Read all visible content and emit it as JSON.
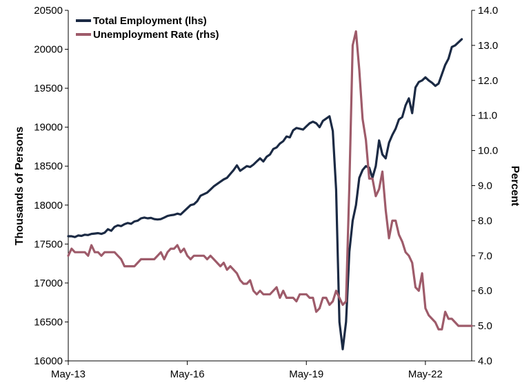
{
  "chart_data": {
    "type": "line",
    "x_tick_labels": [
      "May-13",
      "May-16",
      "May-19",
      "May-22"
    ],
    "y_left": {
      "label": "Thousands of Persons",
      "min": 16000,
      "max": 20500,
      "ticks": [
        "16000",
        "16500",
        "17000",
        "17500",
        "18000",
        "18500",
        "19000",
        "19500",
        "20000",
        "20500"
      ]
    },
    "y_right": {
      "label": "Percent",
      "min": 4.0,
      "max": 14.0,
      "ticks": [
        "4.0",
        "5.0",
        "6.0",
        "7.0",
        "8.0",
        "9.0",
        "10.0",
        "11.0",
        "12.0",
        "13.0",
        "14.0"
      ]
    },
    "legend_position": "top-left",
    "grid": false,
    "series": [
      {
        "name": "Total Employment (lhs)",
        "axis": "left",
        "color": "#1b2a44",
        "points": [
          [
            "2013-05",
            17600
          ],
          [
            "2013-06",
            17600
          ],
          [
            "2013-07",
            17590
          ],
          [
            "2013-08",
            17610
          ],
          [
            "2013-09",
            17605
          ],
          [
            "2013-10",
            17620
          ],
          [
            "2013-11",
            17615
          ],
          [
            "2013-12",
            17630
          ],
          [
            "2014-01",
            17635
          ],
          [
            "2014-02",
            17640
          ],
          [
            "2014-03",
            17630
          ],
          [
            "2014-04",
            17645
          ],
          [
            "2014-05",
            17690
          ],
          [
            "2014-06",
            17670
          ],
          [
            "2014-07",
            17720
          ],
          [
            "2014-08",
            17740
          ],
          [
            "2014-09",
            17730
          ],
          [
            "2014-10",
            17755
          ],
          [
            "2014-11",
            17770
          ],
          [
            "2014-12",
            17760
          ],
          [
            "2015-01",
            17790
          ],
          [
            "2015-02",
            17800
          ],
          [
            "2015-03",
            17830
          ],
          [
            "2015-04",
            17840
          ],
          [
            "2015-05",
            17830
          ],
          [
            "2015-06",
            17835
          ],
          [
            "2015-07",
            17820
          ],
          [
            "2015-08",
            17815
          ],
          [
            "2015-09",
            17820
          ],
          [
            "2015-10",
            17840
          ],
          [
            "2015-11",
            17860
          ],
          [
            "2015-12",
            17870
          ],
          [
            "2016-01",
            17875
          ],
          [
            "2016-02",
            17890
          ],
          [
            "2016-03",
            17880
          ],
          [
            "2016-04",
            17920
          ],
          [
            "2016-05",
            17960
          ],
          [
            "2016-06",
            18000
          ],
          [
            "2016-07",
            18010
          ],
          [
            "2016-08",
            18050
          ],
          [
            "2016-09",
            18120
          ],
          [
            "2016-10",
            18140
          ],
          [
            "2016-11",
            18160
          ],
          [
            "2016-12",
            18200
          ],
          [
            "2017-01",
            18240
          ],
          [
            "2017-02",
            18270
          ],
          [
            "2017-03",
            18300
          ],
          [
            "2017-04",
            18330
          ],
          [
            "2017-05",
            18350
          ],
          [
            "2017-06",
            18400
          ],
          [
            "2017-07",
            18450
          ],
          [
            "2017-08",
            18510
          ],
          [
            "2017-09",
            18440
          ],
          [
            "2017-10",
            18470
          ],
          [
            "2017-11",
            18500
          ],
          [
            "2017-12",
            18490
          ],
          [
            "2018-01",
            18520
          ],
          [
            "2018-02",
            18560
          ],
          [
            "2018-03",
            18600
          ],
          [
            "2018-04",
            18560
          ],
          [
            "2018-05",
            18620
          ],
          [
            "2018-06",
            18650
          ],
          [
            "2018-07",
            18720
          ],
          [
            "2018-08",
            18740
          ],
          [
            "2018-09",
            18790
          ],
          [
            "2018-10",
            18820
          ],
          [
            "2018-11",
            18880
          ],
          [
            "2018-12",
            18870
          ],
          [
            "2019-01",
            18960
          ],
          [
            "2019-02",
            18990
          ],
          [
            "2019-03",
            18980
          ],
          [
            "2019-04",
            18970
          ],
          [
            "2019-05",
            19010
          ],
          [
            "2019-06",
            19050
          ],
          [
            "2019-07",
            19070
          ],
          [
            "2019-08",
            19050
          ],
          [
            "2019-09",
            19000
          ],
          [
            "2019-10",
            19080
          ],
          [
            "2019-11",
            19110
          ],
          [
            "2019-12",
            19140
          ],
          [
            "2020-01",
            18950
          ],
          [
            "2020-02",
            18200
          ],
          [
            "2020-03",
            16500
          ],
          [
            "2020-04",
            16150
          ],
          [
            "2020-05",
            16500
          ],
          [
            "2020-06",
            17400
          ],
          [
            "2020-07",
            17800
          ],
          [
            "2020-08",
            18000
          ],
          [
            "2020-09",
            18350
          ],
          [
            "2020-10",
            18450
          ],
          [
            "2020-11",
            18500
          ],
          [
            "2020-12",
            18480
          ],
          [
            "2021-01",
            18350
          ],
          [
            "2021-02",
            18500
          ],
          [
            "2021-03",
            18830
          ],
          [
            "2021-04",
            18650
          ],
          [
            "2021-05",
            18600
          ],
          [
            "2021-06",
            18800
          ],
          [
            "2021-07",
            18900
          ],
          [
            "2021-08",
            18980
          ],
          [
            "2021-09",
            19100
          ],
          [
            "2021-10",
            19130
          ],
          [
            "2021-11",
            19280
          ],
          [
            "2021-12",
            19370
          ],
          [
            "2022-01",
            19180
          ],
          [
            "2022-02",
            19510
          ],
          [
            "2022-03",
            19580
          ],
          [
            "2022-04",
            19600
          ],
          [
            "2022-05",
            19640
          ],
          [
            "2022-06",
            19600
          ],
          [
            "2022-07",
            19570
          ],
          [
            "2022-08",
            19530
          ],
          [
            "2022-09",
            19560
          ],
          [
            "2022-10",
            19680
          ],
          [
            "2022-11",
            19800
          ],
          [
            "2022-12",
            19880
          ],
          [
            "2023-01",
            20030
          ],
          [
            "2023-02",
            20050
          ],
          [
            "2023-03",
            20090
          ],
          [
            "2023-04",
            20130
          ]
        ]
      },
      {
        "name": "Unemployment Rate (rhs)",
        "axis": "right",
        "color": "#9e5b6a",
        "points": [
          [
            "2013-05",
            7.0
          ],
          [
            "2013-06",
            7.2
          ],
          [
            "2013-07",
            7.1
          ],
          [
            "2013-08",
            7.1
          ],
          [
            "2013-09",
            7.1
          ],
          [
            "2013-10",
            7.1
          ],
          [
            "2013-11",
            7.0
          ],
          [
            "2013-12",
            7.3
          ],
          [
            "2014-01",
            7.1
          ],
          [
            "2014-02",
            7.1
          ],
          [
            "2014-03",
            7.0
          ],
          [
            "2014-04",
            7.1
          ],
          [
            "2014-05",
            7.1
          ],
          [
            "2014-06",
            7.1
          ],
          [
            "2014-07",
            7.1
          ],
          [
            "2014-08",
            7.0
          ],
          [
            "2014-09",
            6.9
          ],
          [
            "2014-10",
            6.7
          ],
          [
            "2014-11",
            6.7
          ],
          [
            "2014-12",
            6.7
          ],
          [
            "2015-01",
            6.7
          ],
          [
            "2015-02",
            6.8
          ],
          [
            "2015-03",
            6.9
          ],
          [
            "2015-04",
            6.9
          ],
          [
            "2015-05",
            6.9
          ],
          [
            "2015-06",
            6.9
          ],
          [
            "2015-07",
            6.9
          ],
          [
            "2015-08",
            7.0
          ],
          [
            "2015-09",
            7.1
          ],
          [
            "2015-10",
            6.9
          ],
          [
            "2015-11",
            7.1
          ],
          [
            "2015-12",
            7.2
          ],
          [
            "2016-01",
            7.2
          ],
          [
            "2016-02",
            7.3
          ],
          [
            "2016-03",
            7.1
          ],
          [
            "2016-04",
            7.2
          ],
          [
            "2016-05",
            7.0
          ],
          [
            "2016-06",
            6.9
          ],
          [
            "2016-07",
            7.0
          ],
          [
            "2016-08",
            7.0
          ],
          [
            "2016-09",
            7.0
          ],
          [
            "2016-10",
            7.0
          ],
          [
            "2016-11",
            6.9
          ],
          [
            "2016-12",
            7.0
          ],
          [
            "2017-01",
            6.9
          ],
          [
            "2017-02",
            6.8
          ],
          [
            "2017-03",
            6.7
          ],
          [
            "2017-04",
            6.8
          ],
          [
            "2017-05",
            6.6
          ],
          [
            "2017-06",
            6.7
          ],
          [
            "2017-07",
            6.6
          ],
          [
            "2017-08",
            6.5
          ],
          [
            "2017-09",
            6.3
          ],
          [
            "2017-10",
            6.2
          ],
          [
            "2017-11",
            6.2
          ],
          [
            "2017-12",
            6.3
          ],
          [
            "2018-01",
            6.0
          ],
          [
            "2018-02",
            5.9
          ],
          [
            "2018-03",
            6.0
          ],
          [
            "2018-04",
            5.9
          ],
          [
            "2018-05",
            5.9
          ],
          [
            "2018-06",
            5.9
          ],
          [
            "2018-07",
            6.0
          ],
          [
            "2018-08",
            6.1
          ],
          [
            "2018-09",
            5.8
          ],
          [
            "2018-10",
            6.0
          ],
          [
            "2018-11",
            5.8
          ],
          [
            "2018-12",
            5.8
          ],
          [
            "2019-01",
            5.8
          ],
          [
            "2019-02",
            5.7
          ],
          [
            "2019-03",
            5.9
          ],
          [
            "2019-04",
            5.9
          ],
          [
            "2019-05",
            5.9
          ],
          [
            "2019-06",
            5.8
          ],
          [
            "2019-07",
            5.8
          ],
          [
            "2019-08",
            5.4
          ],
          [
            "2019-09",
            5.5
          ],
          [
            "2019-10",
            5.8
          ],
          [
            "2019-11",
            5.8
          ],
          [
            "2019-12",
            5.6
          ],
          [
            "2020-01",
            5.7
          ],
          [
            "2020-02",
            6.0
          ],
          [
            "2020-03",
            5.8
          ],
          [
            "2020-04",
            5.6
          ],
          [
            "2020-05",
            5.7
          ],
          [
            "2020-06",
            9.0
          ],
          [
            "2020-07",
            13.0
          ],
          [
            "2020-08",
            13.4
          ],
          [
            "2020-09",
            12.3
          ],
          [
            "2020-10",
            10.9
          ],
          [
            "2020-11",
            10.3
          ],
          [
            "2020-12",
            9.2
          ],
          [
            "2021-01",
            9.2
          ],
          [
            "2021-02",
            8.7
          ],
          [
            "2021-03",
            8.9
          ],
          [
            "2021-04",
            9.4
          ],
          [
            "2021-05",
            8.3
          ],
          [
            "2021-06",
            7.5
          ],
          [
            "2021-07",
            8.0
          ],
          [
            "2021-08",
            8.0
          ],
          [
            "2021-09",
            7.6
          ],
          [
            "2021-10",
            7.4
          ],
          [
            "2021-11",
            7.1
          ],
          [
            "2021-12",
            7.0
          ],
          [
            "2022-01",
            6.8
          ],
          [
            "2022-02",
            6.1
          ],
          [
            "2022-03",
            6.0
          ],
          [
            "2022-04",
            6.5
          ],
          [
            "2022-05",
            5.5
          ],
          [
            "2022-06",
            5.3
          ],
          [
            "2022-07",
            5.2
          ],
          [
            "2022-08",
            5.1
          ],
          [
            "2022-09",
            4.9
          ],
          [
            "2022-10",
            4.9
          ],
          [
            "2022-11",
            5.4
          ],
          [
            "2022-12",
            5.2
          ],
          [
            "2023-01",
            5.2
          ],
          [
            "2023-02",
            5.1
          ],
          [
            "2023-03",
            5.0
          ],
          [
            "2023-04",
            5.0
          ],
          [
            "2023-05",
            5.0
          ],
          [
            "2023-06",
            5.0
          ],
          [
            "2023-07",
            5.0
          ]
        ]
      }
    ]
  }
}
